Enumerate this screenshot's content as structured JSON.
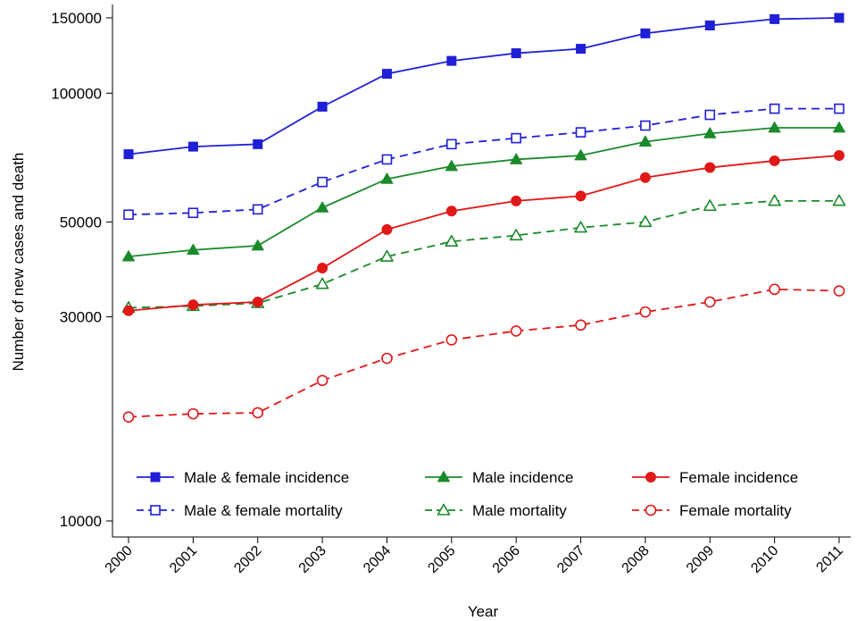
{
  "chart_data": {
    "type": "line",
    "title": "",
    "xlabel": "Year",
    "ylabel": "Number of new cases and death",
    "yscale": "log",
    "ylim": [
      10000,
      160000
    ],
    "grid": false,
    "legend_placement": "bottom-inside",
    "x": [
      2000,
      2001,
      2002,
      2003,
      2004,
      2005,
      2006,
      2007,
      2008,
      2009,
      2010,
      2011
    ],
    "x_tick_labels": [
      "2000",
      "2001",
      "2002",
      "2003",
      "2004",
      "2005",
      "2006",
      "2007",
      "2008",
      "2009",
      "2010",
      "2011"
    ],
    "y_ticks": [
      10000,
      30000,
      50000,
      100000,
      150000
    ],
    "y_tick_labels": [
      "10000",
      "30000",
      "50000",
      "100000",
      "150000"
    ],
    "series": [
      {
        "name": "Male & female incidence",
        "color": "#1f1fd6",
        "marker": "square",
        "filled": true,
        "dashed": false,
        "values": [
          72000,
          75000,
          76000,
          93000,
          111000,
          119000,
          124000,
          127000,
          138000,
          144000,
          149000,
          150000
        ]
      },
      {
        "name": "Male & female mortality",
        "color": "#1f1fd6",
        "marker": "square",
        "filled": false,
        "dashed": true,
        "values": [
          52000,
          52500,
          53500,
          62000,
          70000,
          76000,
          78500,
          81000,
          84000,
          89000,
          92000,
          92000
        ]
      },
      {
        "name": "Male incidence",
        "color": "#1a8a2a",
        "marker": "triangle",
        "filled": true,
        "dashed": false,
        "values": [
          41500,
          43000,
          44000,
          54000,
          63000,
          67500,
          70000,
          71500,
          77000,
          80500,
          83000,
          83000
        ]
      },
      {
        "name": "Male mortality",
        "color": "#1a8a2a",
        "marker": "triangle",
        "filled": false,
        "dashed": true,
        "values": [
          31500,
          31800,
          32300,
          35800,
          41500,
          45000,
          46500,
          48500,
          50000,
          54500,
          56000,
          56000
        ]
      },
      {
        "name": "Female incidence",
        "color": "#e01818",
        "marker": "circle",
        "filled": true,
        "dashed": false,
        "values": [
          31000,
          32000,
          32500,
          39000,
          48000,
          53000,
          56000,
          57500,
          63500,
          67000,
          69500,
          71500
        ]
      },
      {
        "name": "Female mortality",
        "color": "#e01818",
        "marker": "circle",
        "filled": false,
        "dashed": true,
        "values": [
          17500,
          17800,
          17900,
          21300,
          24000,
          26500,
          27800,
          28700,
          30800,
          32500,
          34800,
          34500
        ]
      }
    ],
    "legend_order": [
      0,
      2,
      4,
      1,
      3,
      5
    ]
  }
}
